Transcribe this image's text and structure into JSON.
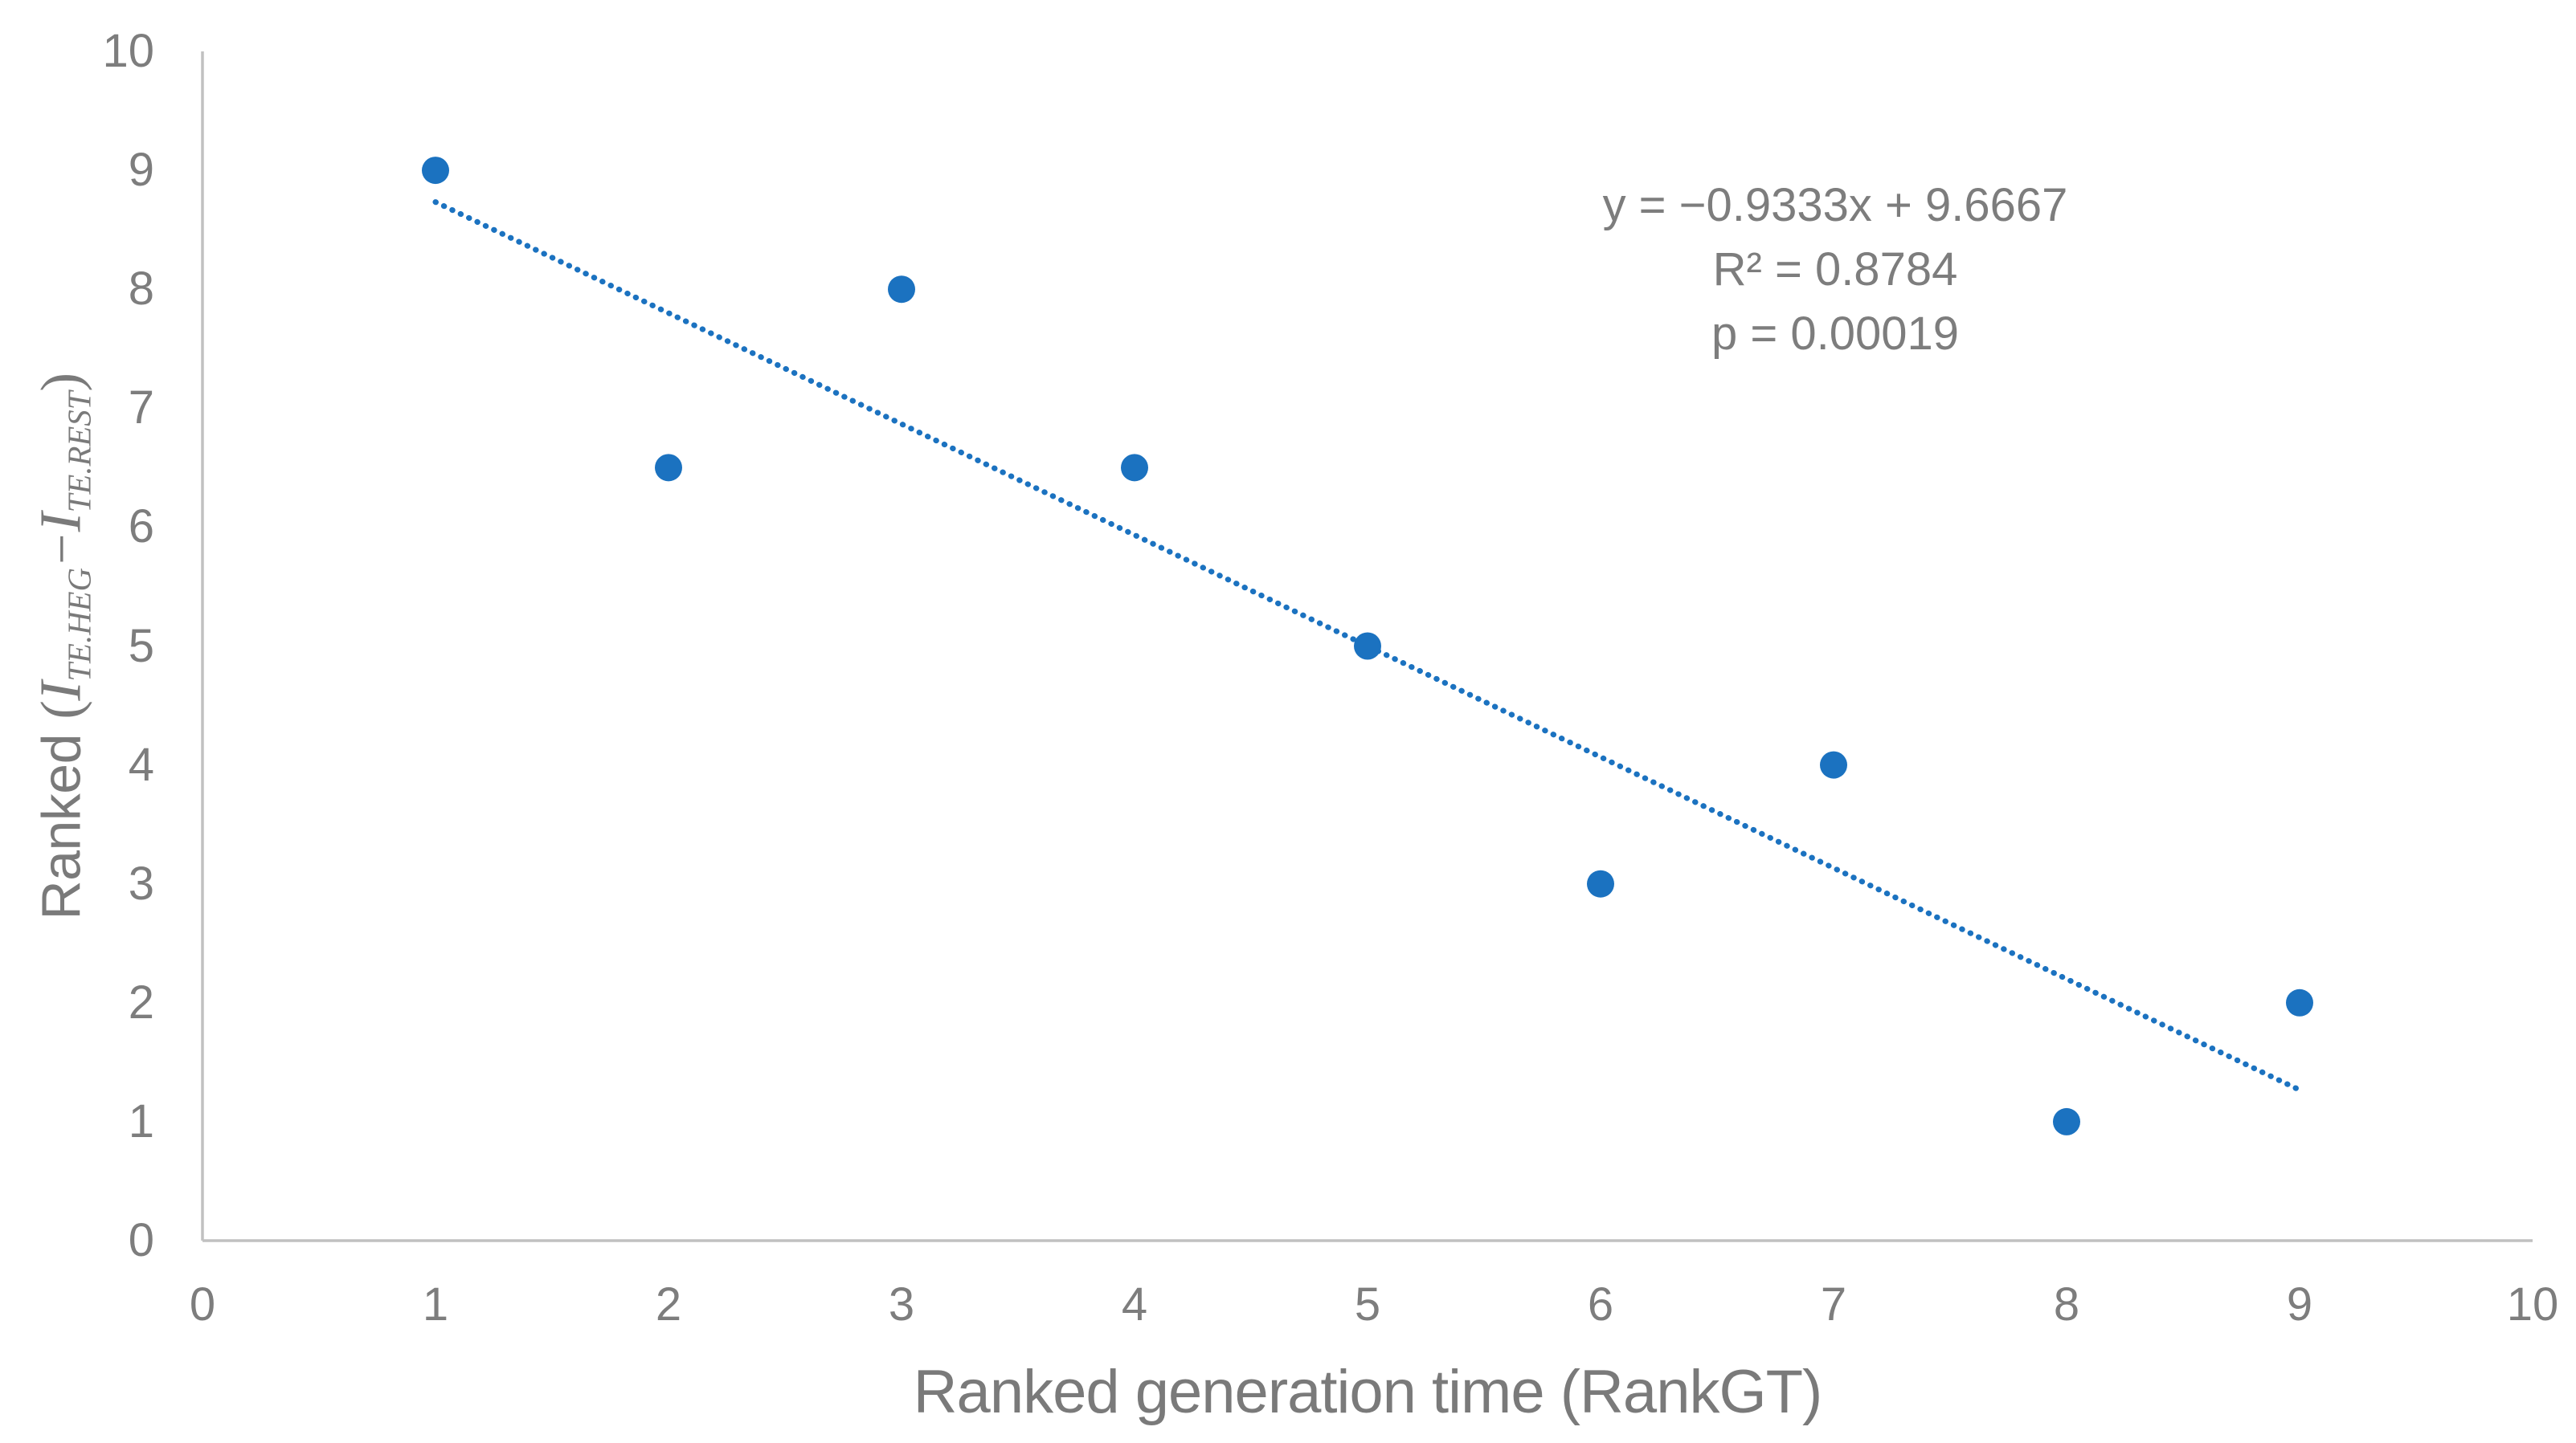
{
  "chart_data": {
    "type": "scatter",
    "title": "",
    "xlabel": "Ranked generation time (RankGT)",
    "ylabel": "Ranked (I TE.HEG − I TE.REST)",
    "x": [
      1,
      2,
      3,
      4,
      5,
      6,
      7,
      8,
      9
    ],
    "y": [
      9,
      6.5,
      8,
      6.5,
      5,
      3,
      4,
      1,
      2
    ],
    "xlim": [
      0,
      10
    ],
    "ylim": [
      0,
      10
    ],
    "x_ticks": [
      "0",
      "1",
      "2",
      "3",
      "4",
      "5",
      "6",
      "7",
      "8",
      "9",
      "10"
    ],
    "y_ticks": [
      "0",
      "1",
      "2",
      "3",
      "4",
      "5",
      "6",
      "7",
      "8",
      "9",
      "10"
    ],
    "grid": false,
    "legend": false,
    "trendline": {
      "slope": -0.9333,
      "intercept": 9.6667,
      "x_start": 1,
      "x_end": 9,
      "style": "dotted"
    },
    "annotations": [
      "y = −0.9333x + 9.6667",
      "R² = 0.8784",
      "p = 0.00019"
    ],
    "colors": {
      "marker": "#1b72c0",
      "trendline": "#1b72c0",
      "axis_line": "#c1c1c1",
      "text": "#7d7d7d"
    },
    "marker_radius_px": 17
  },
  "annotation": {
    "equation": "y = −0.9333x + 9.6667",
    "r_squared": "R² = 0.8784",
    "p_value": "p = 0.00019"
  },
  "x_axis": {
    "title": "Ranked generation time (RankGT)"
  },
  "y_axis": {
    "title_word": "Ranked ",
    "open_paren": "(",
    "term1_base": "I",
    "term1_sub": "TE.HEG",
    "operator": "−",
    "term2_base": "I",
    "term2_sub": "TE.REST",
    "close_paren": ")"
  }
}
